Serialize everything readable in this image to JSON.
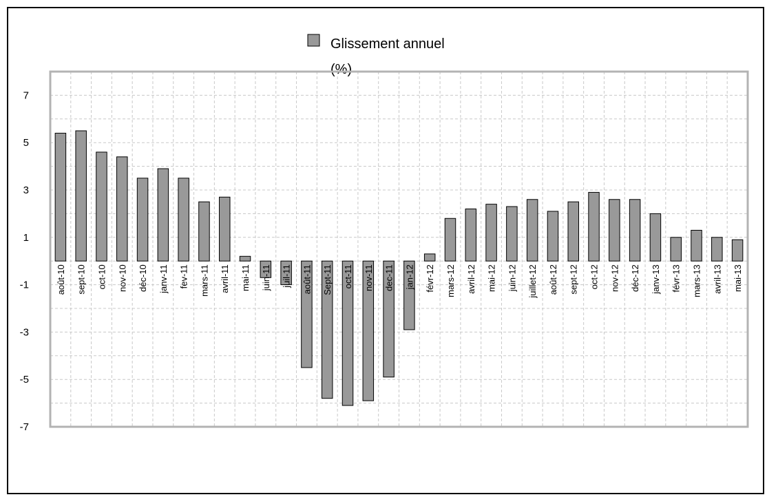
{
  "chart_data": {
    "type": "bar",
    "title": "",
    "xlabel": "",
    "ylabel": "",
    "legend": {
      "position": "top-center",
      "lines": [
        "Glissement annuel",
        "(%)"
      ]
    },
    "grid": true,
    "ylim": [
      -7,
      8
    ],
    "yticks": [
      7,
      5,
      3,
      1,
      -1,
      -3,
      -5,
      -7
    ],
    "colors": {
      "bar": "#999999",
      "bar_stroke": "#000000",
      "plot_border": "#b3b3b3",
      "grid": "#c8c8c8"
    },
    "categories": [
      "août-10",
      "sept-10",
      "oct-10",
      "nov-10",
      "déc-10",
      "janv-11",
      "fev-11",
      "mars-11",
      "avril-11",
      "mai-11",
      "juin-11",
      "juil-11",
      "août-11",
      "Sept-11",
      "oct-11",
      "nov-11",
      "dec-11",
      "jan-12",
      "févr-12",
      "mars-12",
      "avril-12",
      "mai-12",
      "juin-12",
      "juillet-12",
      "août-12",
      "sept-12",
      "oct-12",
      "nov-12",
      "déc-12",
      "janv-13",
      "févr-13",
      "mars-13",
      "avril-13",
      "mai-13"
    ],
    "series": [
      {
        "name": "Glissement annuel (%)",
        "values": [
          5.4,
          5.5,
          4.6,
          4.4,
          3.5,
          3.9,
          3.5,
          2.5,
          2.7,
          0.2,
          -0.7,
          -1.0,
          -4.5,
          -5.8,
          -6.1,
          -5.9,
          -4.9,
          -2.9,
          0.3,
          1.8,
          2.2,
          2.4,
          2.3,
          2.6,
          2.1,
          2.5,
          2.9,
          2.6,
          2.6,
          2.0,
          1.0,
          1.3,
          1.0,
          0.9
        ]
      }
    ]
  }
}
